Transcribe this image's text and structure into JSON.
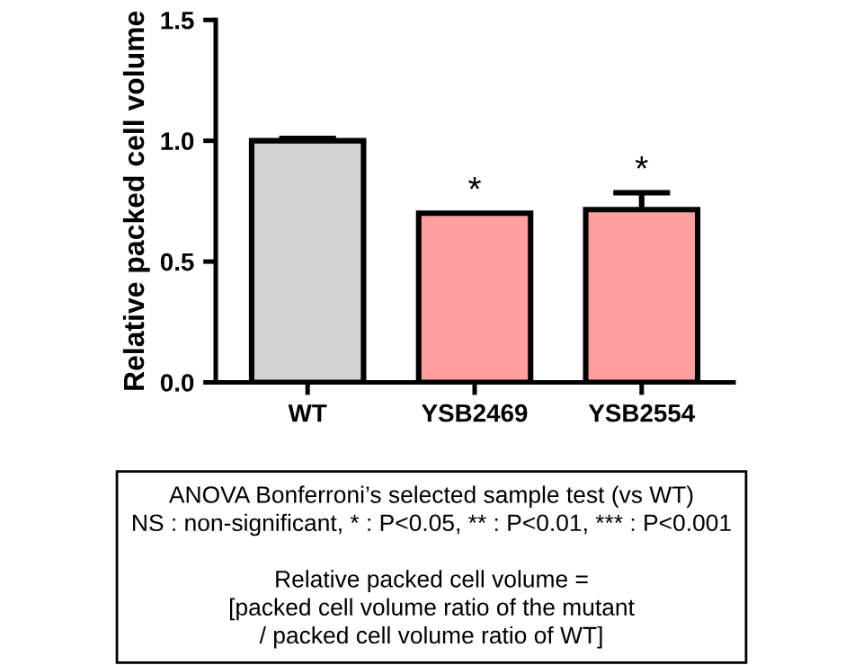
{
  "chart_data": {
    "type": "bar",
    "ylabel": "Relative packed cell volume",
    "categories": [
      "WT",
      "YSB2469",
      "YSB2554"
    ],
    "values": [
      1.0,
      0.7,
      0.715
    ],
    "colors": [
      "#d3d3d3",
      "#ff9f9f",
      "#ff9f9f"
    ],
    "errors": [
      [
        1.0,
        1.01
      ],
      null,
      [
        0.715,
        0.785
      ]
    ],
    "ylim": [
      0,
      1.5
    ],
    "yticks": [
      {
        "value": 0,
        "label": "0.0"
      },
      {
        "value": 0.5,
        "label": "0.5"
      },
      {
        "value": 1.0,
        "label": "1.0"
      },
      {
        "value": 1.5,
        "label": "1.5"
      }
    ],
    "grid": false,
    "annotations": [
      {
        "text": "*",
        "x": "YSB2469",
        "y": 0.7
      },
      {
        "text": "*",
        "x": "YSB2554",
        "y": 0.785
      },
      "ANOVA Bonferroni’s selected sample test (vs WT)\nNS : non-significant, * : P<0.05, ** : P<0.01, *** : P<0.001\n\nRelative packed cell volume =\n[packed cell volume ratio of the mutant\n/ packed cell volume ratio of WT]"
    ]
  }
}
